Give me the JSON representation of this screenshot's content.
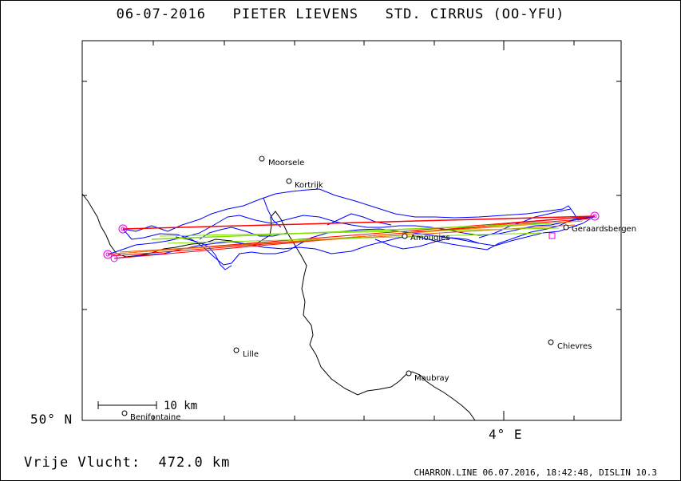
{
  "header": {
    "title": "06-07-2016   PIETER LIEVENS   STD. CIRRUS (OO-YFU)"
  },
  "footer": {
    "distance_text": "Vrije Vlucht:  472.0 km",
    "credit": "CHARRON.LINE 06.07.2016, 18:42:48, DISLIN 10.3"
  },
  "chart_data": {
    "type": "map",
    "title": "06-07-2016   PIETER LIEVENS   STD. CIRRUS (OO-YFU)",
    "axis_labels": {
      "lat": "50° N",
      "lon": "4° E"
    },
    "scale_bar": "10 km",
    "places": [
      {
        "name": "Moorsele"
      },
      {
        "name": "Kortrijk"
      },
      {
        "name": "Geraardsbergen"
      },
      {
        "name": "Amougies"
      },
      {
        "name": "Lille"
      },
      {
        "name": "Chievres"
      },
      {
        "name": "Maubray"
      },
      {
        "name": "Benifontaine"
      }
    ],
    "series": [
      {
        "color": "#0000ff"
      },
      {
        "color": "#ff0000"
      },
      {
        "color": "#80e000"
      },
      {
        "color": "#e000e0"
      }
    ],
    "grid": false
  }
}
